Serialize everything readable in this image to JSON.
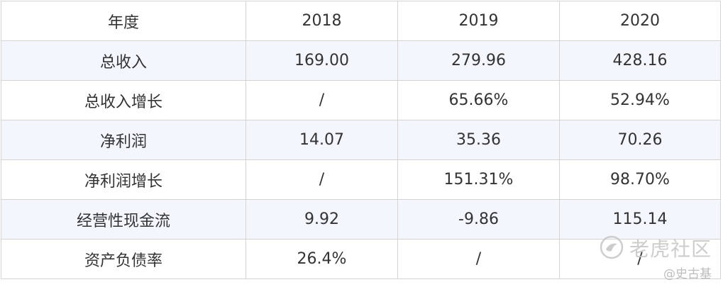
{
  "table": {
    "header": [
      "年度",
      "2018",
      "2019",
      "2020"
    ],
    "rows": [
      [
        "总收入",
        "169.00",
        "279.96",
        "428.16"
      ],
      [
        "总收入增长",
        "/",
        "65.66%",
        "52.94%"
      ],
      [
        "净利润",
        "14.07",
        "35.36",
        "70.26"
      ],
      [
        "净利润增长",
        "/",
        "151.31%",
        "98.70%"
      ],
      [
        "经营性现金流",
        "9.92",
        "-9.86",
        "115.14"
      ],
      [
        "资产负债率",
        "26.4%",
        "/",
        "/"
      ]
    ]
  },
  "watermark": {
    "brand": "老虎社区",
    "author": "@史古基"
  }
}
